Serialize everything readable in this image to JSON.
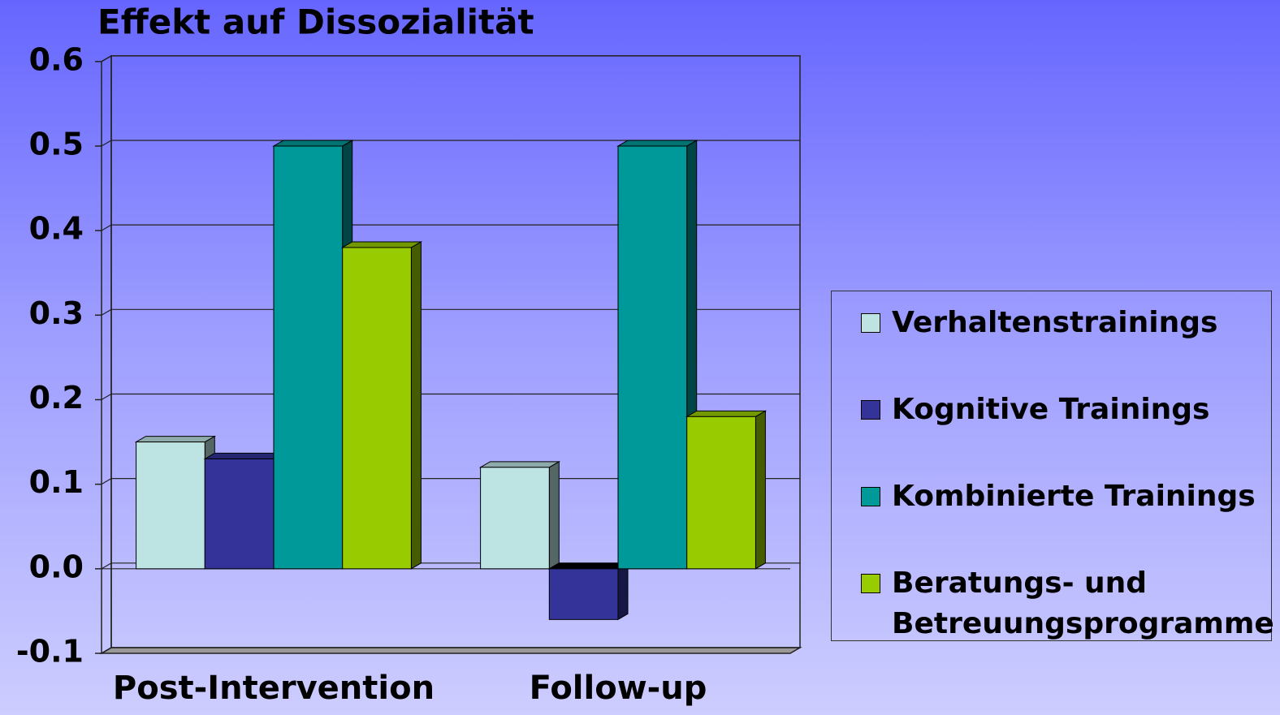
{
  "chart_data": {
    "type": "bar3d",
    "title": "Effekt auf Dissozialität",
    "categories": [
      "Post-Intervention",
      "Follow-up"
    ],
    "series": [
      {
        "name": "Verhaltenstrainings",
        "color": "#bde3e3",
        "values": [
          0.15,
          0.12
        ]
      },
      {
        "name": "Kognitive Trainings",
        "color": "#333399",
        "values": [
          0.13,
          -0.06
        ]
      },
      {
        "name": "Kombinierte Trainings",
        "color": "#009999",
        "values": [
          0.5,
          0.5
        ]
      },
      {
        "name": "Beratungs- und Betreuungsprogramme",
        "color": "#99cc00",
        "values": [
          0.38,
          0.18
        ]
      }
    ],
    "ylim": [
      -0.1,
      0.6
    ],
    "yticks": [
      -0.1,
      {
        "value": 0,
        "label": "0.0"
      },
      0.1,
      0.2,
      0.3,
      0.4,
      0.5,
      0.6
    ],
    "grid": true,
    "legend": "right"
  }
}
